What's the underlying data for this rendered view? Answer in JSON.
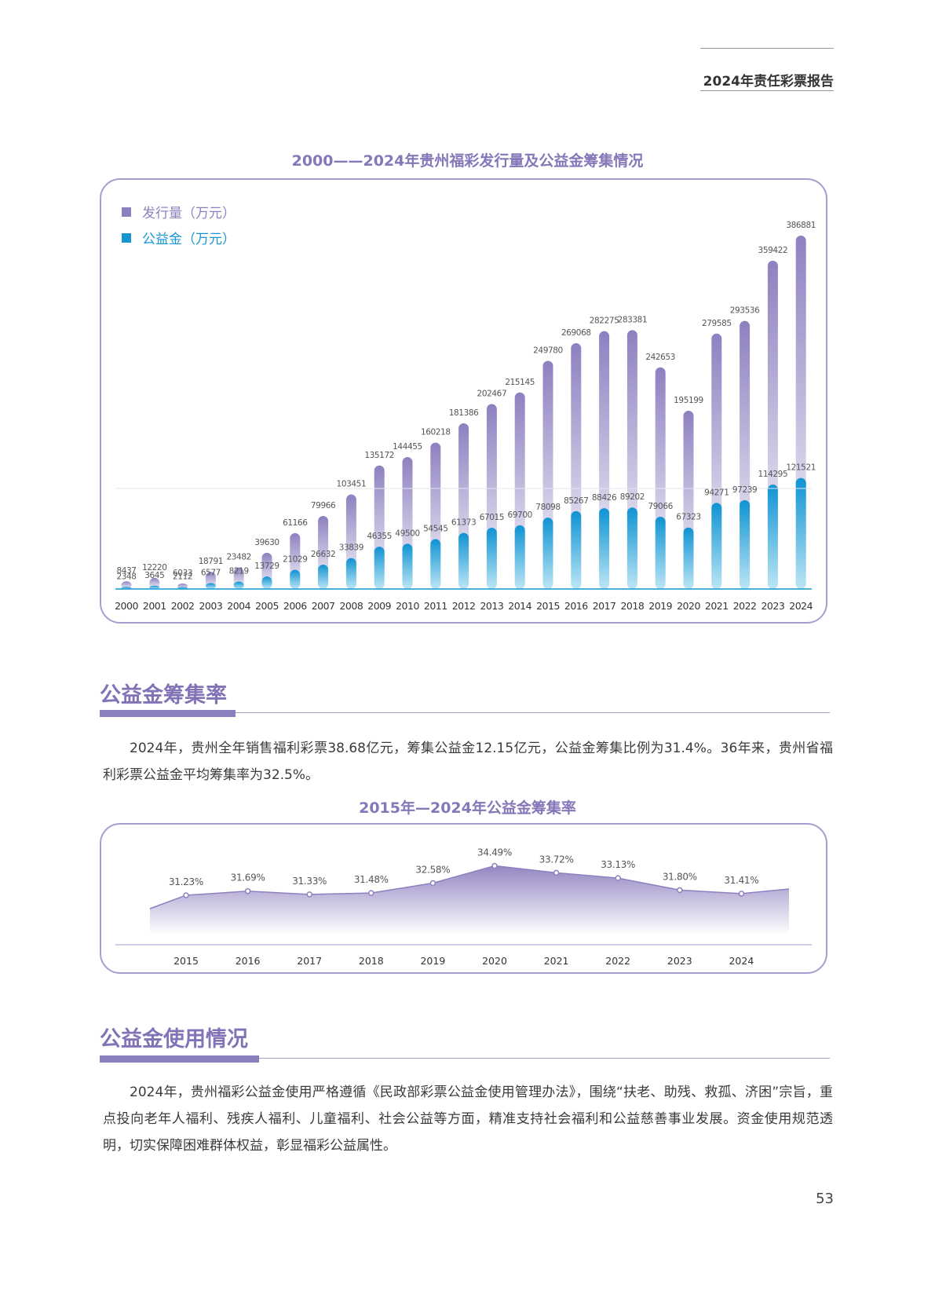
{
  "header": {
    "title": "2024年责任彩票报告"
  },
  "chart1": {
    "title": "2000——2024年贵州福彩发行量及公益金筹集情况",
    "legend": [
      "发行量（万元）",
      "公益金（万元）"
    ],
    "colors": {
      "sales": "#8e80c0",
      "welfare": "#1596d3"
    }
  },
  "chart2": {
    "title": "2015年—2024年公益金筹集率",
    "color": "#8e80c0"
  },
  "chart_data": [
    {
      "type": "bar",
      "categories": [
        "2000",
        "2001",
        "2002",
        "2003",
        "2004",
        "2005",
        "2006",
        "2007",
        "2008",
        "2009",
        "2010",
        "2011",
        "2012",
        "2013",
        "2014",
        "2015",
        "2016",
        "2017",
        "2018",
        "2019",
        "2020",
        "2021",
        "2022",
        "2023",
        "2024"
      ],
      "series": [
        {
          "name": "发行量（万元）",
          "values": [
            8437,
            12220,
            6033,
            18791,
            23482,
            39630,
            61166,
            79966,
            103451,
            135172,
            144455,
            160218,
            181386,
            202467,
            215145,
            249780,
            269068,
            282275,
            283381,
            242653,
            195199,
            279585,
            293536,
            359422,
            386881
          ]
        },
        {
          "name": "公益金（万元）",
          "values": [
            2348,
            3645,
            2112,
            6577,
            8219,
            13729,
            21029,
            26632,
            33839,
            46355,
            49500,
            54545,
            61373,
            67015,
            69700,
            78098,
            85267,
            88426,
            89202,
            79066,
            67323,
            94271,
            97239,
            114295,
            121521
          ]
        }
      ],
      "legend": "top-left",
      "grid": false
    },
    {
      "type": "area",
      "categories": [
        "2015",
        "2016",
        "2017",
        "2018",
        "2019",
        "2020",
        "2021",
        "2022",
        "2023",
        "2024"
      ],
      "values": [
        31.23,
        31.69,
        31.33,
        31.48,
        32.58,
        34.49,
        33.72,
        33.13,
        31.8,
        31.41
      ],
      "labels": [
        "31.23%",
        "31.69%",
        "31.33%",
        "31.48%",
        "32.58%",
        "34.49%",
        "33.72%",
        "33.13%",
        "31.80%",
        "31.41%"
      ],
      "grid": false
    }
  ],
  "sections": [
    {
      "heading": "公益金筹集率",
      "text": "2024年，贵州全年销售福利彩票38.68亿元，筹集公益金12.15亿元，公益金筹集比例为31.4%。36年来，贵州省福利彩票公益金平均筹集率为32.5%。"
    },
    {
      "heading": "公益金使用情况",
      "text": "2024年，贵州福彩公益金使用严格遵循《民政部彩票公益金使用管理办法》，围绕“扶老、助残、救孤、济困”宗旨，重点投向老年人福利、残疾人福利、儿童福利、社会公益等方面，精准支持社会福利和公益慈善事业发展。资金使用规范透明，切实保障困难群体权益，彰显福彩公益属性。"
    }
  ],
  "page_number": "53"
}
